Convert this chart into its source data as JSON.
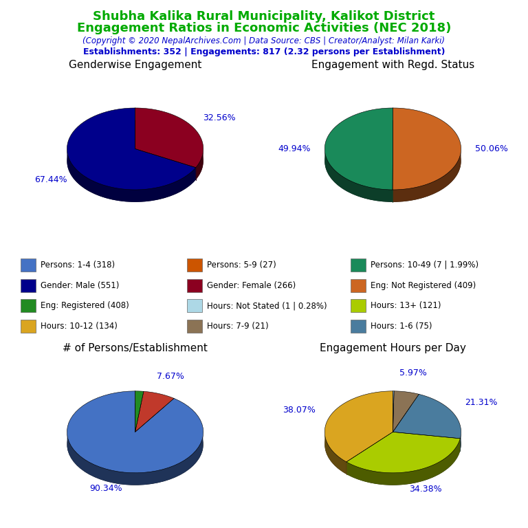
{
  "title_line1": "Shubha Kalika Rural Municipality, Kalikot District",
  "title_line2": "Engagement Ratios in Economic Activities (NEC 2018)",
  "subtitle": "(Copyright © 2020 NepalArchives.Com | Data Source: CBS | Creator/Analyst: Milan Karki)",
  "stats_line": "Establishments: 352 | Engagements: 817 (2.32 persons per Establishment)",
  "title_color": "#00aa00",
  "subtitle_color": "#0000cc",
  "stats_color": "#0000cc",
  "chart1_title": "Genderwise Engagement",
  "chart1_values": [
    67.44,
    32.56
  ],
  "chart1_colors": [
    "#00008B",
    "#8B0020"
  ],
  "chart1_labels": [
    "67.44%",
    "32.56%"
  ],
  "chart1_startangle": 90,
  "chart2_title": "Engagement with Regd. Status",
  "chart2_values": [
    49.94,
    50.06
  ],
  "chart2_colors": [
    "#1a8a5a",
    "#CC6622"
  ],
  "chart2_labels": [
    "49.94%",
    "50.06%"
  ],
  "chart2_startangle": 90,
  "chart3_title": "# of Persons/Establishment",
  "chart3_values": [
    90.34,
    7.67,
    1.99
  ],
  "chart3_colors": [
    "#4472C4",
    "#C0392B",
    "#228B22"
  ],
  "chart3_labels": [
    "90.34%",
    "7.67%",
    ""
  ],
  "chart3_startangle": 90,
  "chart4_title": "Engagement Hours per Day",
  "chart4_values": [
    38.07,
    34.38,
    21.31,
    5.97,
    0.28
  ],
  "chart4_colors": [
    "#DAA520",
    "#AACC00",
    "#4A7C9E",
    "#8B7355",
    "#ADD8E6"
  ],
  "chart4_labels": [
    "38.07%",
    "34.38%",
    "21.31%",
    "5.97%",
    ""
  ],
  "chart4_startangle": 90,
  "legend_items": [
    {
      "label": "Persons: 1-4 (318)",
      "color": "#4472C4"
    },
    {
      "label": "Persons: 5-9 (27)",
      "color": "#CC5500"
    },
    {
      "label": "Persons: 10-49 (7 | 1.99%)",
      "color": "#1a8a5a"
    },
    {
      "label": "Gender: Male (551)",
      "color": "#00008B"
    },
    {
      "label": "Gender: Female (266)",
      "color": "#8B0020"
    },
    {
      "label": "Eng: Not Registered (409)",
      "color": "#CC6622"
    },
    {
      "label": "Eng: Registered (408)",
      "color": "#228B22"
    },
    {
      "label": "Hours: Not Stated (1 | 0.28%)",
      "color": "#ADD8E6"
    },
    {
      "label": "Hours: 13+ (121)",
      "color": "#AACC00"
    },
    {
      "label": "Hours: 10-12 (134)",
      "color": "#DAA520"
    },
    {
      "label": "Hours: 7-9 (21)",
      "color": "#8B7355"
    },
    {
      "label": "Hours: 1-6 (75)",
      "color": "#4A7C9E"
    }
  ]
}
